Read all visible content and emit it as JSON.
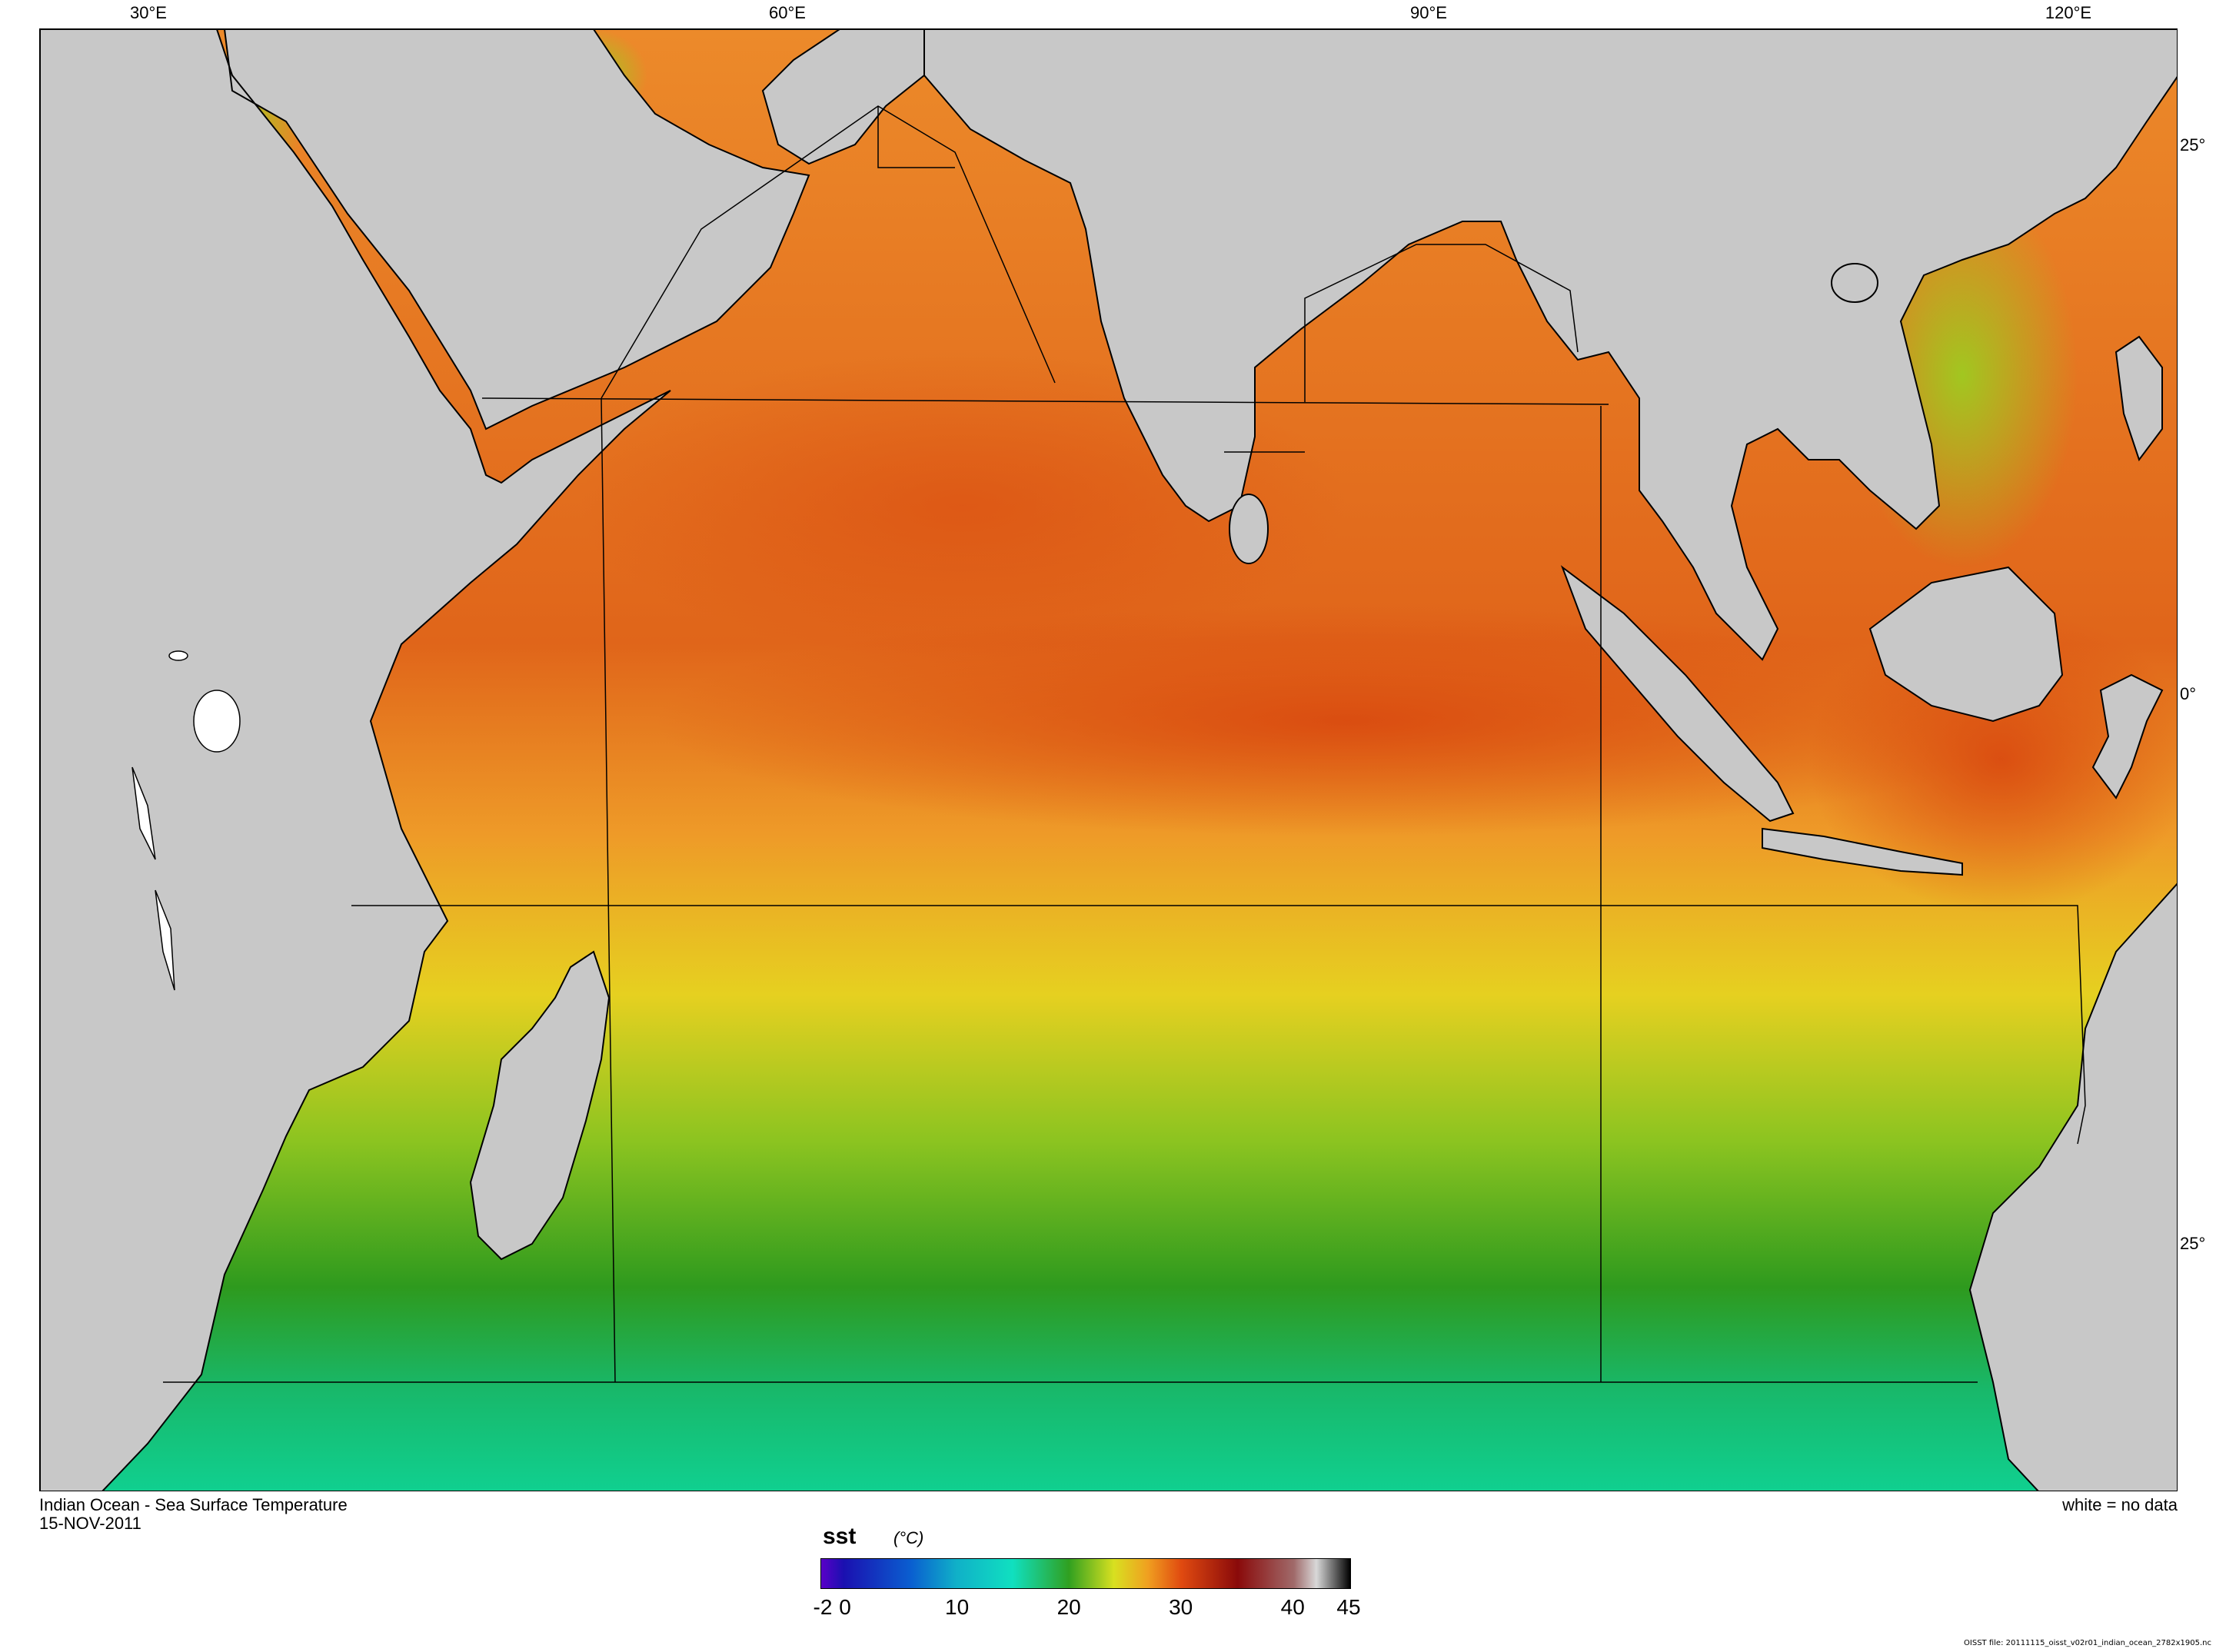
{
  "map": {
    "lon_labels": [
      "30°E",
      "60°E",
      "90°E",
      "120°E"
    ],
    "lat_labels": [
      "25°",
      "0°",
      "25°"
    ],
    "colors": {
      "land": "#c8c8c8",
      "no_data": "#ffffff",
      "coast": "#000000",
      "sst_hot": "#d44a10",
      "sst_warm": "#ef8a2c",
      "sst_mild": "#e8c520",
      "sst_cool": "#3aa320",
      "sst_cold": "#10d090"
    }
  },
  "caption": {
    "title": "Indian Ocean - Sea Surface Temperature",
    "date": "15-NOV-2011",
    "no_data_note": "white = no data"
  },
  "colorbar": {
    "variable": "sst",
    "units": "(°C)",
    "ticks": [
      "-2",
      "0",
      "10",
      "20",
      "30",
      "40",
      "45"
    ],
    "stops": [
      {
        "value": -2,
        "color": "#5a00c8"
      },
      {
        "value": 0,
        "color": "#1a10b0"
      },
      {
        "value": 6,
        "color": "#0a5fd0"
      },
      {
        "value": 10,
        "color": "#10b0c8"
      },
      {
        "value": 15,
        "color": "#10e0c0"
      },
      {
        "value": 20,
        "color": "#30a020"
      },
      {
        "value": 24,
        "color": "#d8e020"
      },
      {
        "value": 27,
        "color": "#f0a020"
      },
      {
        "value": 30,
        "color": "#e04a10"
      },
      {
        "value": 35,
        "color": "#8a0a0a"
      },
      {
        "value": 40,
        "color": "#a06a6a"
      },
      {
        "value": 42,
        "color": "#d8d8d8"
      },
      {
        "value": 45,
        "color": "#000000"
      }
    ]
  },
  "footer": "OISST file: 20111115_oisst_v02r01_indian_ocean_2782x1905.nc"
}
